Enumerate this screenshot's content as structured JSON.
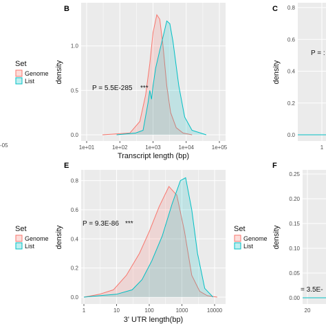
{
  "colors": {
    "genome": "#F8766D",
    "list": "#00BFC4",
    "panel_bg": "#EBEBEB",
    "grid": "#FFFFFF"
  },
  "legend": {
    "title": "Set",
    "items": [
      "Genome",
      "List"
    ]
  },
  "chart_data": [
    {
      "panel": "B",
      "type": "area",
      "xlabel": "Transcript length (bp)",
      "ylabel": "density",
      "x_scale": "log10",
      "xlim": [
        10,
        100000
      ],
      "ylim": [
        0,
        1.4
      ],
      "x_ticks": [
        "1e+01",
        "1e+02",
        "1e+03",
        "1e+04",
        "1e+05"
      ],
      "y_ticks": [
        "0.0",
        "0.5",
        "1.0"
      ],
      "annotation": "P = 5.5E-285",
      "stars": "***",
      "series": [
        {
          "name": "Genome",
          "x": [
            30,
            200,
            400,
            600,
            800,
            1000,
            1300,
            1600,
            2000,
            2600,
            3400,
            5000,
            8000,
            15000
          ],
          "y": [
            0,
            0.02,
            0.15,
            0.45,
            0.8,
            1.15,
            1.35,
            1.3,
            1.0,
            0.55,
            0.25,
            0.08,
            0.02,
            0
          ]
        },
        {
          "name": "List",
          "x": [
            80,
            300,
            500,
            700,
            800,
            900,
            1000,
            1200,
            1600,
            2000,
            2600,
            3200,
            4000,
            6000,
            9000,
            15000,
            40000
          ],
          "y": [
            0,
            0.02,
            0.05,
            0.35,
            0.5,
            0.4,
            0.55,
            0.75,
            0.95,
            1.1,
            1.28,
            1.25,
            1.05,
            0.55,
            0.2,
            0.05,
            0
          ]
        }
      ]
    },
    {
      "panel": "E",
      "type": "area",
      "xlabel": "3' UTR length(bp)",
      "ylabel": "density",
      "x_scale": "log10",
      "xlim": [
        1,
        10000
      ],
      "ylim": [
        0,
        0.85
      ],
      "x_ticks": [
        "1",
        "10",
        "100",
        "1000",
        "10000"
      ],
      "y_ticks": [
        "0.0",
        "0.2",
        "0.4",
        "0.6",
        "0.8"
      ],
      "annotation": "P = 9.3E-86",
      "stars": "***",
      "series": [
        {
          "name": "Genome",
          "x": [
            1,
            3,
            8,
            20,
            50,
            100,
            200,
            400,
            700,
            1200,
            2000,
            3500,
            6000,
            12000
          ],
          "y": [
            0,
            0.02,
            0.05,
            0.15,
            0.3,
            0.45,
            0.62,
            0.76,
            0.7,
            0.45,
            0.15,
            0.04,
            0.01,
            0
          ]
        },
        {
          "name": "List",
          "x": [
            1,
            3,
            10,
            30,
            60,
            120,
            250,
            500,
            900,
            1300,
            2000,
            3000,
            5000,
            9000
          ],
          "y": [
            0,
            0.01,
            0.02,
            0.05,
            0.12,
            0.25,
            0.42,
            0.64,
            0.8,
            0.82,
            0.6,
            0.3,
            0.06,
            0
          ]
        }
      ]
    },
    {
      "panel": "C",
      "type": "area",
      "ylabel": "density",
      "y_ticks": [
        "0.0",
        "0.2",
        "0.4",
        "0.6",
        "0.8"
      ],
      "x_ticks": [
        "1"
      ],
      "annotation": "P = :"
    },
    {
      "panel": "F",
      "type": "area",
      "ylabel": "density",
      "y_ticks": [
        "0.00",
        "0.05",
        "0.10",
        "0.15",
        "0.20",
        "0.25"
      ],
      "x_ticks": [
        "20"
      ],
      "annotation": "= 3.5E-"
    }
  ],
  "cut_left": {
    "tick_top": "-05"
  }
}
